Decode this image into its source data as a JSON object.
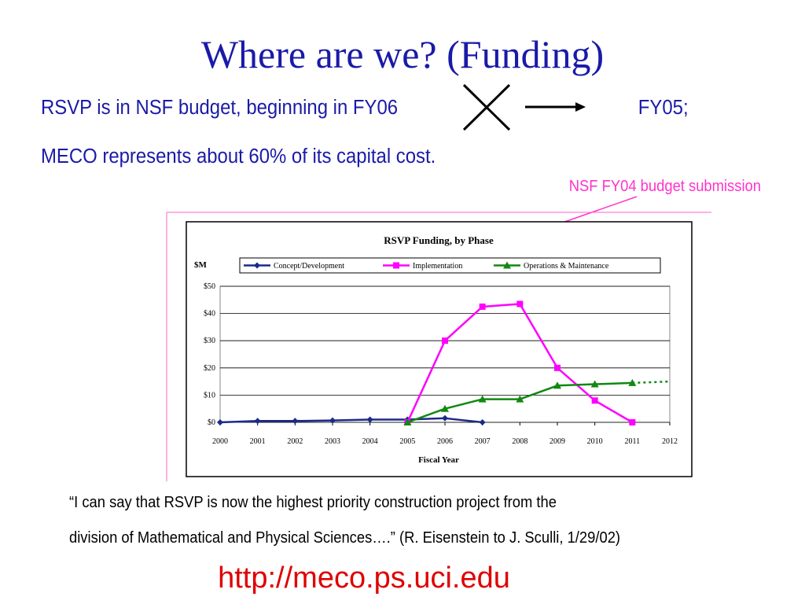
{
  "slide": {
    "title": "Where are we? (Funding)",
    "line1_start": "RSVP is in NSF budget, beginning in ",
    "line1_old": "FY06",
    "line1_new": "FY05;",
    "line2": "MECO represents about 60% of its capital cost.",
    "annotation": "NSF FY04 budget submission",
    "quote_line1": "“I can say that RSVP is now the highest priority construction project from the",
    "quote_line2": "division of Mathematical and Physical Sciences….” (R. Eisenstein to J. Sculli, 1/29/02)",
    "url": "http://meco.ps.uci.edu"
  },
  "chart_data": {
    "type": "line",
    "title": "RSVP Funding, by Phase",
    "y_label": "$M",
    "x_label": "Fiscal Year",
    "x": [
      2000,
      2001,
      2002,
      2003,
      2004,
      2005,
      2006,
      2007,
      2008,
      2009,
      2010,
      2011,
      2012
    ],
    "xlim": [
      2000,
      2012
    ],
    "xticks": [
      2000,
      2001,
      2002,
      2003,
      2004,
      2005,
      2006,
      2007,
      2008,
      2009,
      2010,
      2011,
      2012
    ],
    "ylim": [
      0,
      50
    ],
    "yticks": [
      {
        "value": 0,
        "label": "$0"
      },
      {
        "value": 10,
        "label": "$10"
      },
      {
        "value": 20,
        "label": "$20"
      },
      {
        "value": 30,
        "label": "$30"
      },
      {
        "value": 40,
        "label": "$40"
      },
      {
        "value": 50,
        "label": "$50"
      }
    ],
    "grid": true,
    "series": [
      {
        "name": "Concept/Development",
        "color": "#1c2a8c",
        "marker": "diamond",
        "values": [
          0,
          0.5,
          0.5,
          0.7,
          1,
          1,
          1.5,
          0,
          null,
          null,
          null,
          null,
          null
        ]
      },
      {
        "name": "Implementation",
        "color": "#ff00ff",
        "marker": "square",
        "values": [
          null,
          null,
          null,
          null,
          null,
          0,
          30,
          42.5,
          43.5,
          20,
          8,
          0,
          null
        ]
      },
      {
        "name": "Operations & Maintenance",
        "color": "#118811",
        "marker": "triangle",
        "dotted_last": true,
        "values": [
          null,
          null,
          null,
          null,
          null,
          0,
          5,
          8.5,
          8.5,
          13.5,
          14,
          14.5,
          15
        ]
      }
    ]
  }
}
